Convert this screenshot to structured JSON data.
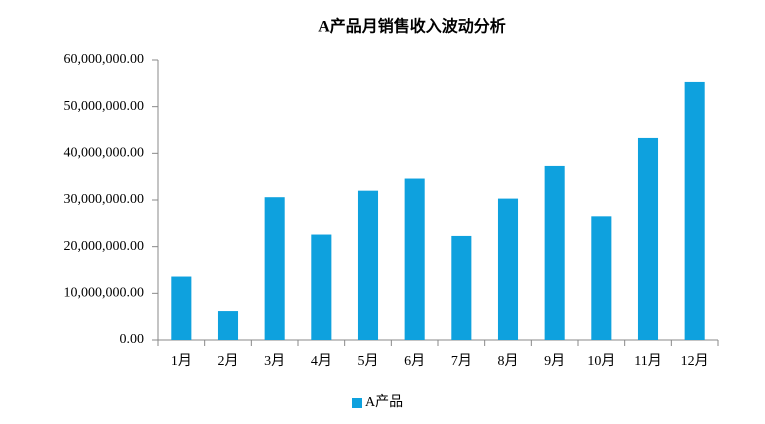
{
  "chart_data": {
    "type": "bar",
    "title": "A产品月销售收入波动分析",
    "categories": [
      "1月",
      "2月",
      "3月",
      "4月",
      "5月",
      "6月",
      "7月",
      "8月",
      "9月",
      "10月",
      "11月",
      "12月"
    ],
    "series": [
      {
        "name": "A产品",
        "color": "#0ea1de",
        "values": [
          13600000,
          6200000,
          30600000,
          22600000,
          32000000,
          34600000,
          22300000,
          30300000,
          37300000,
          26500000,
          43300000,
          55300000
        ]
      }
    ],
    "ylim": [
      0,
      60000000
    ],
    "yticks": [
      {
        "value": 0,
        "label": "0.00"
      },
      {
        "value": 10000000,
        "label": "10,000,000.00"
      },
      {
        "value": 20000000,
        "label": "20,000,000.00"
      },
      {
        "value": 30000000,
        "label": "30,000,000.00"
      },
      {
        "value": 40000000,
        "label": "40,000,000.00"
      },
      {
        "value": 50000000,
        "label": "50,000,000.00"
      },
      {
        "value": 60000000,
        "label": "60,000,000.00"
      }
    ],
    "grid": false,
    "legend": "bottom"
  }
}
